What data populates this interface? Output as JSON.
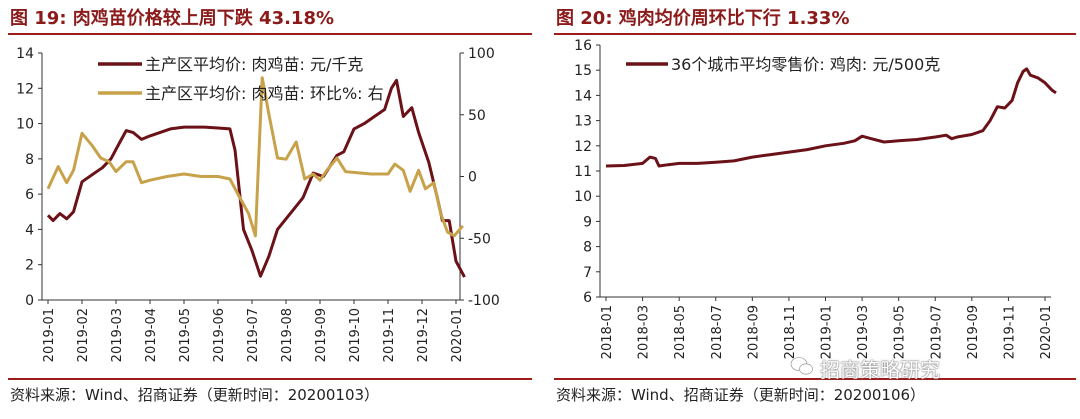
{
  "left": {
    "title": "图 19:  肉鸡苗价格较上周下跌 43.18%",
    "source": "资料来源：Wind、招商证券（更新时间：20200103）",
    "chart_data": {
      "type": "line",
      "title": "肉鸡苗价格较上周下跌 43.18%",
      "x": [
        "2019-01",
        "2019-02",
        "2019-03",
        "2019-04",
        "2019-05",
        "2019-06",
        "2019-07",
        "2019-08",
        "2019-09",
        "2019-10",
        "2019-11",
        "2019-12",
        "2020-01"
      ],
      "y_left_ticks": [
        "0",
        "2",
        "4",
        "6",
        "8",
        "10",
        "12",
        "14"
      ],
      "y_right_ticks": [
        "-100",
        "-50",
        "0",
        "50",
        "100"
      ],
      "ylim_left": [
        0,
        14
      ],
      "ylim_right": [
        -100,
        100
      ],
      "series": [
        {
          "name": "主产区平均价: 肉鸡苗: 元/千克",
          "axis": "left",
          "color": "#6b1218",
          "points": [
            [
              0,
              4.8
            ],
            [
              0.15,
              4.5
            ],
            [
              0.35,
              4.9
            ],
            [
              0.55,
              4.6
            ],
            [
              0.75,
              5.0
            ],
            [
              1.0,
              6.7
            ],
            [
              1.3,
              7.1
            ],
            [
              1.6,
              7.5
            ],
            [
              1.85,
              8.0
            ],
            [
              2.1,
              8.9
            ],
            [
              2.3,
              9.6
            ],
            [
              2.5,
              9.5
            ],
            [
              2.75,
              9.1
            ],
            [
              3.0,
              9.3
            ],
            [
              3.3,
              9.5
            ],
            [
              3.6,
              9.7
            ],
            [
              4.0,
              9.8
            ],
            [
              4.4,
              9.8
            ],
            [
              4.6,
              9.8
            ],
            [
              5.0,
              9.75
            ],
            [
              5.35,
              9.7
            ],
            [
              5.5,
              8.5
            ],
            [
              5.75,
              4.0
            ],
            [
              6.0,
              2.8
            ],
            [
              6.25,
              1.35
            ],
            [
              6.5,
              2.5
            ],
            [
              6.75,
              4.0
            ],
            [
              7.0,
              4.6
            ],
            [
              7.25,
              5.2
            ],
            [
              7.5,
              5.8
            ],
            [
              7.8,
              7.2
            ],
            [
              8.1,
              7.0
            ],
            [
              8.3,
              7.6
            ],
            [
              8.5,
              8.2
            ],
            [
              8.7,
              8.4
            ],
            [
              9.0,
              9.7
            ],
            [
              9.3,
              10.0
            ],
            [
              9.6,
              10.4
            ],
            [
              9.9,
              10.8
            ],
            [
              10.1,
              12.0
            ],
            [
              10.25,
              12.45
            ],
            [
              10.45,
              10.4
            ],
            [
              10.7,
              10.9
            ],
            [
              10.9,
              9.5
            ],
            [
              11.2,
              7.8
            ],
            [
              11.45,
              5.8
            ],
            [
              11.6,
              4.5
            ],
            [
              11.8,
              4.5
            ],
            [
              12.0,
              2.2
            ],
            [
              12.25,
              1.3
            ]
          ]
        },
        {
          "name": "主产区平均价: 肉鸡苗: 环比%: 右",
          "axis": "right",
          "color": "#c8a24a",
          "points": [
            [
              0,
              -10
            ],
            [
              0.3,
              8
            ],
            [
              0.55,
              -5
            ],
            [
              0.75,
              5
            ],
            [
              1.0,
              35
            ],
            [
              1.3,
              25
            ],
            [
              1.55,
              15
            ],
            [
              1.8,
              12
            ],
            [
              2.0,
              4
            ],
            [
              2.3,
              12
            ],
            [
              2.5,
              12
            ],
            [
              2.75,
              -5
            ],
            [
              3.0,
              -3
            ],
            [
              3.5,
              0
            ],
            [
              4.0,
              2
            ],
            [
              4.5,
              0
            ],
            [
              5.0,
              0
            ],
            [
              5.35,
              -2
            ],
            [
              5.6,
              -15
            ],
            [
              5.9,
              -30
            ],
            [
              6.1,
              -48
            ],
            [
              6.3,
              80
            ],
            [
              6.5,
              50
            ],
            [
              6.75,
              15
            ],
            [
              7.0,
              14
            ],
            [
              7.3,
              28
            ],
            [
              7.55,
              -2
            ],
            [
              7.8,
              2
            ],
            [
              8.0,
              -3
            ],
            [
              8.2,
              5
            ],
            [
              8.5,
              15
            ],
            [
              8.75,
              4
            ],
            [
              9.1,
              3
            ],
            [
              9.5,
              2
            ],
            [
              10.0,
              2
            ],
            [
              10.2,
              10
            ],
            [
              10.45,
              5
            ],
            [
              10.65,
              -12
            ],
            [
              10.9,
              5
            ],
            [
              11.1,
              -10
            ],
            [
              11.35,
              -5
            ],
            [
              11.55,
              -30
            ],
            [
              11.75,
              -45
            ],
            [
              11.95,
              -48
            ],
            [
              12.2,
              -40
            ]
          ]
        }
      ]
    }
  },
  "right": {
    "title": "图 20:  鸡肉均价周环比下行 1.33%",
    "source": "资料来源：Wind、招商证券（更新时间：20200106）",
    "watermark": "招商策略研究",
    "chart_data": {
      "type": "line",
      "title": "鸡肉均价周环比下行 1.33%",
      "x": [
        "2018-01",
        "2018-03",
        "2018-05",
        "2018-07",
        "2018-09",
        "2018-11",
        "2019-01",
        "2019-03",
        "2019-05",
        "2019-07",
        "2019-09",
        "2019-11",
        "2020-01"
      ],
      "y_ticks": [
        "6",
        "7",
        "8",
        "9",
        "10",
        "11",
        "12",
        "13",
        "14",
        "15",
        "16"
      ],
      "ylim": [
        6,
        16
      ],
      "series": [
        {
          "name": "36个城市平均零售价: 鸡肉: 元/500克",
          "color": "#6b1218",
          "points": [
            [
              0,
              11.2
            ],
            [
              0.5,
              11.22
            ],
            [
              1.0,
              11.3
            ],
            [
              1.2,
              11.55
            ],
            [
              1.35,
              11.5
            ],
            [
              1.45,
              11.2
            ],
            [
              1.7,
              11.25
            ],
            [
              2.0,
              11.3
            ],
            [
              2.5,
              11.3
            ],
            [
              3.0,
              11.35
            ],
            [
              3.5,
              11.4
            ],
            [
              4.0,
              11.55
            ],
            [
              4.5,
              11.65
            ],
            [
              5.0,
              11.75
            ],
            [
              5.5,
              11.85
            ],
            [
              6.0,
              12.0
            ],
            [
              6.5,
              12.1
            ],
            [
              6.8,
              12.2
            ],
            [
              7.0,
              12.38
            ],
            [
              7.2,
              12.3
            ],
            [
              7.6,
              12.15
            ],
            [
              8.0,
              12.2
            ],
            [
              8.5,
              12.25
            ],
            [
              9.0,
              12.35
            ],
            [
              9.3,
              12.42
            ],
            [
              9.45,
              12.28
            ],
            [
              9.6,
              12.35
            ],
            [
              10.0,
              12.45
            ],
            [
              10.3,
              12.6
            ],
            [
              10.5,
              13.0
            ],
            [
              10.7,
              13.55
            ],
            [
              10.9,
              13.5
            ],
            [
              11.1,
              13.8
            ],
            [
              11.25,
              14.5
            ],
            [
              11.4,
              14.95
            ],
            [
              11.5,
              15.05
            ],
            [
              11.6,
              14.8
            ],
            [
              11.8,
              14.7
            ],
            [
              12.0,
              14.5
            ],
            [
              12.2,
              14.2
            ],
            [
              12.3,
              14.1
            ]
          ]
        }
      ]
    }
  }
}
